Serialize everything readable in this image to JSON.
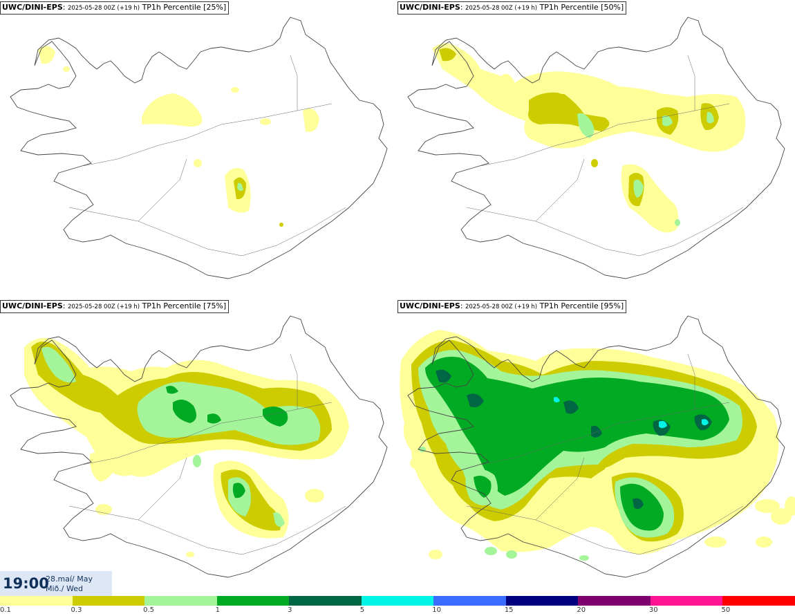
{
  "panels": [
    {
      "model": "UWC/DINI-EPS",
      "run": "2025-05-28 00Z (+19 h)",
      "field": "TP1h Percentile [25%]",
      "percentile": 25
    },
    {
      "model": "UWC/DINI-EPS",
      "run": "2025-05-28 00Z (+19 h)",
      "field": "TP1h Percentile [50%]",
      "percentile": 50
    },
    {
      "model": "UWC/DINI-EPS",
      "run": "2025-05-28 00Z (+19 h)",
      "field": "TP1h Percentile [75%]",
      "percentile": 75
    },
    {
      "model": "UWC/DINI-EPS",
      "run": "2025-05-28 00Z (+19 h)",
      "field": "TP1h Percentile [95%]",
      "percentile": 95
    }
  ],
  "valid_time": {
    "clock": "19:00",
    "date": "28.maí/ May",
    "day": "Mið./ Wed"
  },
  "legend": {
    "ticks": [
      "0.1",
      "0.3",
      "0.5",
      "1",
      "3",
      "5",
      "10",
      "15",
      "20",
      "30",
      "50"
    ],
    "colors": [
      "#ffff9a",
      "#cccc00",
      "#a4f59a",
      "#00aa22",
      "#006644",
      "#00f5e6",
      "#3a6cff",
      "#00007e",
      "#7e006e",
      "#ff1493",
      "#ff0000"
    ]
  }
}
